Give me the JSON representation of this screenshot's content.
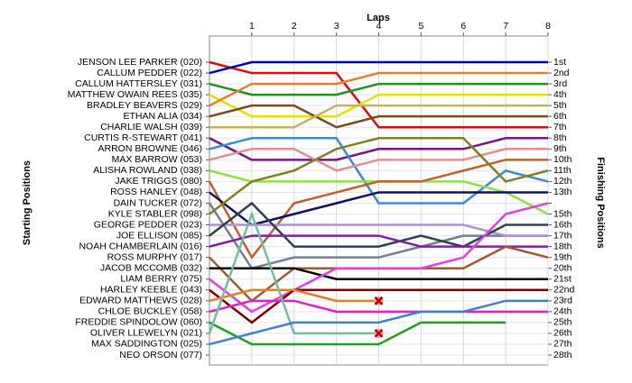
{
  "chart_data": {
    "type": "lap",
    "xlabel": "Laps",
    "ylabel": "Starting Positions",
    "y2label": "Finishing Positions",
    "xlim": [
      0,
      8
    ],
    "xticks": [
      1,
      2,
      3,
      4,
      5,
      6,
      7,
      8
    ],
    "ylim": [
      1,
      28
    ],
    "positions": [
      "1st",
      "2nd",
      "3rd",
      "4th",
      "5th",
      "6th",
      "7th",
      "8th",
      "9th",
      "10th",
      "11th",
      "12th",
      "13th",
      null,
      "15th",
      "16th",
      "17th",
      "18th",
      "19th",
      "20th",
      "21st",
      "22nd",
      "23rd",
      "24th",
      "25th",
      "26th",
      "27th",
      "28th"
    ],
    "series": [
      {
        "name": "JENSON LEE PARKER (020)",
        "color": "#d01010",
        "values": [
          1,
          2,
          2,
          2,
          7,
          7,
          7,
          7,
          7
        ]
      },
      {
        "name": "CALLUM PEDDER (022)",
        "color": "#0000b0",
        "values": [
          2,
          1,
          1,
          1,
          1,
          1,
          1,
          1,
          1
        ]
      },
      {
        "name": "CALLUM HATTERSLEY (031)",
        "color": "#209020",
        "values": [
          3,
          4,
          4,
          4,
          3,
          3,
          3,
          3,
          3
        ]
      },
      {
        "name": "MATTHEW OWAIN REES (035)",
        "color": "#e8e000",
        "values": [
          4,
          6,
          6,
          6,
          4,
          4,
          4,
          4,
          4
        ]
      },
      {
        "name": "BRADLEY BEAVERS (029)",
        "color": "#e08030",
        "values": [
          5,
          3,
          3,
          3,
          2,
          2,
          2,
          2,
          2
        ]
      },
      {
        "name": "ETHAN ALIA (034)",
        "color": "#7a4a20",
        "values": [
          6,
          5,
          5,
          7,
          6,
          6,
          6,
          6,
          6
        ]
      },
      {
        "name": "CHARLIE WALSH (039)",
        "color": "#c8b060",
        "values": [
          7,
          7,
          7,
          5,
          5,
          5,
          5,
          5,
          5
        ]
      },
      {
        "name": "CURTIS R-STEWART (041)",
        "color": "#701a80",
        "values": [
          8,
          10,
          10,
          10,
          9,
          9,
          9,
          8,
          8
        ]
      },
      {
        "name": "ARRON BROWNE (046)",
        "color": "#3a8ad8",
        "values": [
          9,
          8,
          8,
          8,
          14,
          14,
          14,
          11,
          12
        ]
      },
      {
        "name": "MAX BARROW (053)",
        "color": "#e09090",
        "values": [
          10,
          9,
          9,
          11,
          10,
          10,
          10,
          9,
          9
        ]
      },
      {
        "name": "ALISHA ROWLAND (038)",
        "color": "#90e040",
        "values": [
          11,
          12,
          12,
          12,
          12,
          12,
          12,
          13,
          15
        ]
      },
      {
        "name": "JAKE TRIGGS (080)",
        "color": "#c06030",
        "values": [
          12,
          19,
          14,
          13,
          12,
          12,
          11,
          10,
          10
        ]
      },
      {
        "name": "ROSS HANLEY (048)",
        "color": "#101060",
        "values": [
          13,
          16,
          15,
          14,
          13,
          13,
          13,
          13,
          13
        ]
      },
      {
        "name": "DAIN TUCKER (072)",
        "color": "#708090",
        "values": [
          14,
          20,
          19,
          19,
          19,
          18,
          17,
          17,
          17
        ]
      },
      {
        "name": "KYLE STABLER (098)",
        "color": "#808020",
        "values": [
          15,
          12,
          11,
          9,
          8,
          8,
          8,
          12,
          11
        ]
      },
      {
        "name": "GEORGE PEDDER (023)",
        "color": "#b090d0",
        "values": [
          16,
          16,
          16,
          16,
          16,
          16,
          16,
          17,
          17
        ]
      },
      {
        "name": "JOE ELLISON (085)",
        "color": "#304050",
        "values": [
          17,
          14,
          18,
          18,
          18,
          17,
          18,
          16,
          16
        ]
      },
      {
        "name": "NOAH CHAMBERLAIN (016)",
        "color": "#8020a0",
        "values": [
          18,
          17,
          17,
          17,
          17,
          18,
          18,
          18,
          18
        ]
      },
      {
        "name": "ROSS MURPHY (017)",
        "color": "#a05a30",
        "values": [
          19,
          23,
          20,
          20,
          20,
          20,
          20,
          18,
          19
        ]
      },
      {
        "name": "JACOB MCCOMB (032)",
        "color": "#000000",
        "values": [
          20,
          20,
          20,
          21,
          21,
          21,
          21,
          21,
          21
        ]
      },
      {
        "name": "LIAM BERRY (075)",
        "color": "#e040e0",
        "values": [
          21,
          24,
          22,
          20,
          20,
          20,
          19,
          15,
          14
        ]
      },
      {
        "name": "HARLEY KEEBLE (043)",
        "color": "#800000",
        "values": [
          22,
          25,
          22,
          22,
          22,
          22,
          22,
          22,
          22
        ]
      },
      {
        "name": "EDWARD MATTHEWS (028)",
        "color": "#e08020",
        "values": [
          23,
          22,
          22,
          23,
          23,
          null,
          null,
          null,
          null
        ],
        "retired": true
      },
      {
        "name": "CHLOE BUCKLEY (058)",
        "color": "#e020c0",
        "values": [
          24,
          23,
          23,
          24,
          24,
          24,
          24,
          24,
          24
        ]
      },
      {
        "name": "FREDDIE SPINDOLOW (060)",
        "color": "#20a020",
        "values": [
          25,
          27,
          27,
          27,
          27,
          25,
          25,
          25,
          null
        ]
      },
      {
        "name": "OLIVER LLEWELYN (021)",
        "color": "#70c0a0",
        "values": [
          26,
          15,
          26,
          26,
          26,
          null,
          null,
          null,
          null
        ],
        "retired": true
      },
      {
        "name": "MAX SADDINGTON (025)",
        "color": "#4080d0",
        "values": [
          27,
          26,
          25,
          25,
          25,
          24,
          24,
          23,
          23
        ]
      },
      {
        "name": "NEO ORSON (077)",
        "color": "#808080",
        "values": [
          28,
          null,
          null,
          null,
          null,
          null,
          null,
          null,
          null
        ]
      }
    ]
  }
}
